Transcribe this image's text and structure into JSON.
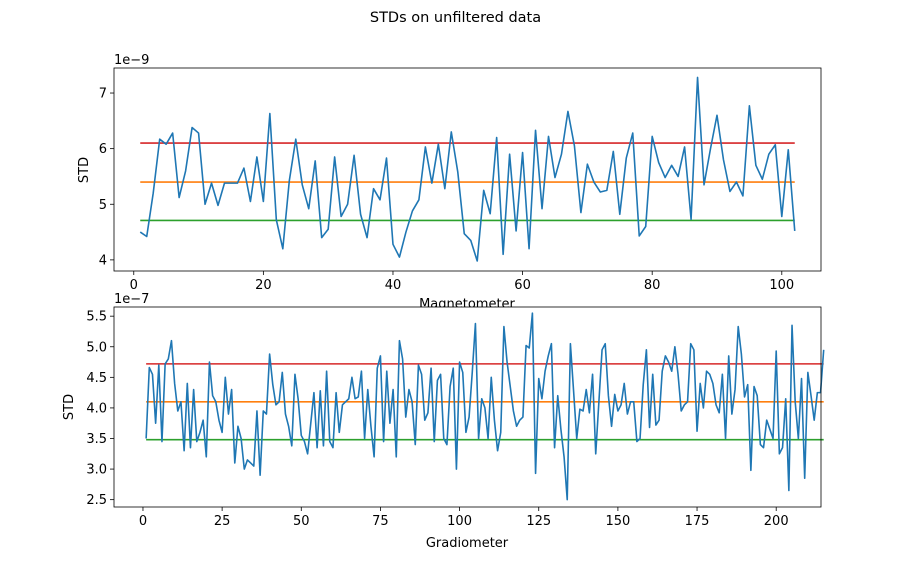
{
  "figure": {
    "suptitle": "STDs on unfiltered data"
  },
  "chart_data": [
    {
      "type": "line",
      "title": "",
      "xlabel": "Magnetometer",
      "ylabel": "STD",
      "offset_label": "1e−9",
      "xlim": [
        -3.05,
        106.05
      ],
      "ylim": [
        3.8,
        7.45
      ],
      "xticks": [
        0,
        20,
        40,
        60,
        80,
        100
      ],
      "yticks": [
        4,
        5,
        6,
        7
      ],
      "series": [
        {
          "color": "#1f77b4",
          "x_start": 1,
          "values": [
            4.5,
            4.42,
            5.2,
            6.17,
            6.08,
            6.28,
            5.12,
            5.6,
            6.38,
            6.28,
            5.0,
            5.38,
            4.98,
            5.38,
            5.38,
            5.38,
            5.65,
            5.05,
            5.85,
            5.05,
            6.63,
            4.72,
            4.2,
            5.42,
            6.17,
            5.35,
            4.92,
            5.78,
            4.4,
            4.55,
            5.85,
            4.78,
            5.0,
            5.88,
            4.82,
            4.4,
            5.28,
            5.08,
            5.83,
            4.28,
            4.05,
            4.5,
            4.88,
            5.08,
            6.03,
            5.38,
            6.08,
            5.28,
            6.3,
            5.58,
            4.47,
            4.35,
            3.98,
            5.25,
            4.83,
            6.2,
            4.1,
            5.9,
            4.52,
            5.93,
            4.2,
            6.33,
            4.92,
            6.22,
            5.48,
            5.9,
            6.67,
            6.05,
            4.85,
            5.72,
            5.4,
            5.22,
            5.25,
            5.95,
            4.82,
            5.83,
            6.28,
            4.43,
            4.6,
            6.22,
            5.75,
            5.48,
            5.7,
            5.5,
            6.03,
            4.73,
            7.28,
            5.35,
            6.0,
            6.6,
            5.8,
            5.23,
            5.4,
            5.15,
            6.77,
            5.7,
            5.45,
            5.9,
            6.07,
            4.78,
            5.98,
            4.52
          ]
        }
      ],
      "hlines": [
        {
          "name": "upper",
          "y": 6.1,
          "color": "#d62728"
        },
        {
          "name": "mean",
          "y": 5.4,
          "color": "#ff7f0e"
        },
        {
          "name": "lower",
          "y": 4.71,
          "color": "#2ca02c"
        }
      ]
    },
    {
      "type": "line",
      "title": "",
      "xlabel": "Gradiometer",
      "ylabel": "STD",
      "offset_label": "1e−7",
      "xlim": [
        -9.15,
        214.15
      ],
      "ylim": [
        2.38,
        5.65
      ],
      "xticks": [
        0,
        25,
        50,
        75,
        100,
        125,
        150,
        175,
        200
      ],
      "yticks": [
        2.5,
        3.0,
        3.5,
        4.0,
        4.5,
        5.0,
        5.5
      ],
      "ytick_labels": [
        "2.5",
        "3.0",
        "3.5",
        "4.0",
        "4.5",
        "5.0",
        "5.5"
      ],
      "series": [
        {
          "color": "#1f77b4",
          "x_start": 1,
          "values": [
            3.5,
            4.66,
            4.55,
            3.75,
            4.7,
            3.45,
            4.72,
            4.8,
            5.1,
            4.4,
            3.95,
            4.1,
            3.3,
            4.4,
            3.35,
            4.3,
            3.45,
            3.6,
            3.8,
            3.2,
            4.75,
            4.2,
            4.1,
            3.8,
            3.6,
            4.5,
            3.9,
            4.3,
            3.1,
            3.7,
            3.5,
            3.0,
            3.15,
            3.1,
            3.05,
            3.95,
            2.9,
            3.95,
            3.9,
            4.88,
            4.38,
            4.05,
            4.1,
            4.58,
            3.9,
            3.7,
            3.38,
            4.55,
            4.15,
            3.55,
            3.45,
            3.25,
            3.75,
            4.25,
            3.35,
            4.28,
            3.38,
            4.6,
            3.45,
            3.35,
            4.25,
            3.6,
            4.05,
            4.1,
            4.15,
            4.5,
            4.15,
            4.18,
            4.6,
            3.5,
            4.3,
            3.7,
            3.2,
            4.65,
            4.85,
            3.45,
            4.6,
            3.75,
            4.3,
            3.2,
            5.1,
            4.8,
            3.85,
            4.3,
            4.1,
            3.4,
            4.7,
            4.55,
            3.8,
            3.92,
            4.65,
            3.45,
            4.45,
            4.55,
            3.5,
            3.4,
            4.35,
            4.65,
            3.0,
            4.75,
            4.58,
            3.6,
            3.85,
            4.58,
            5.38,
            3.5,
            4.15,
            4.0,
            3.5,
            4.5,
            3.8,
            3.3,
            3.6,
            5.33,
            4.75,
            4.35,
            3.95,
            3.7,
            3.8,
            3.85,
            5.02,
            4.98,
            5.55,
            2.93,
            4.48,
            4.15,
            4.6,
            4.85,
            5.05,
            3.35,
            4.2,
            3.65,
            3.2,
            2.5,
            5.05,
            4.28,
            3.5,
            3.98,
            3.95,
            4.3,
            3.92,
            4.55,
            3.25,
            4.1,
            4.95,
            5.05,
            4.2,
            3.7,
            4.22,
            3.95,
            4.05,
            4.4,
            3.9,
            4.1,
            4.1,
            3.45,
            3.5,
            4.38,
            4.95,
            3.68,
            4.55,
            3.72,
            3.8,
            4.6,
            4.85,
            4.75,
            4.6,
            5.0,
            4.55,
            3.95,
            4.05,
            4.1,
            5.05,
            4.95,
            3.62,
            4.4,
            4.0,
            4.6,
            4.55,
            4.4,
            4.05,
            3.92,
            4.55,
            3.5,
            4.85,
            3.9,
            4.3,
            5.33,
            4.88,
            4.18,
            4.38,
            2.98,
            4.35,
            4.2,
            3.4,
            3.35,
            3.8,
            3.65,
            3.5,
            4.93,
            3.25,
            3.35,
            4.15,
            2.65,
            5.35,
            4.1,
            3.5,
            4.48,
            2.85,
            4.58,
            4.2,
            3.8,
            4.25,
            4.25,
            4.95
          ]
        }
      ],
      "hlines": [
        {
          "name": "upper",
          "y": 4.72,
          "color": "#d62728"
        },
        {
          "name": "mean",
          "y": 4.1,
          "color": "#ff7f0e"
        },
        {
          "name": "lower",
          "y": 3.48,
          "color": "#2ca02c"
        }
      ]
    }
  ]
}
